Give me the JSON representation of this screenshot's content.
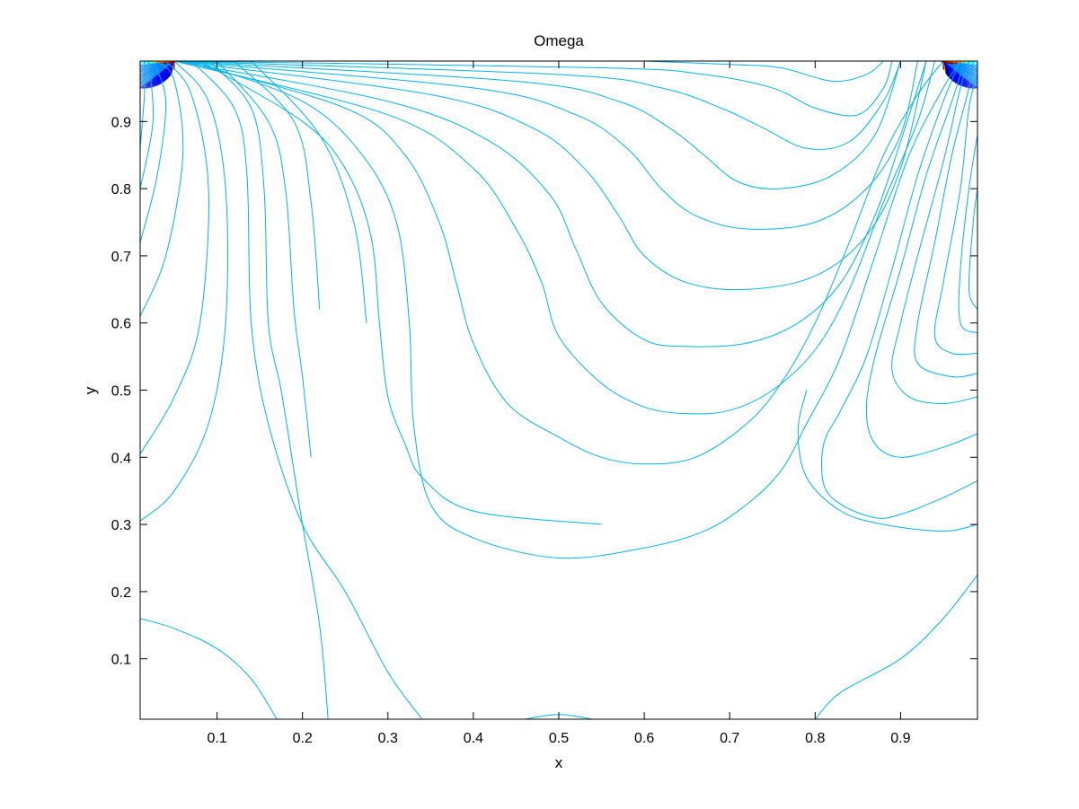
{
  "chart_data": {
    "type": "contour",
    "title": "Omega",
    "xlabel": "x",
    "ylabel": "y",
    "xlim": [
      0.01,
      0.99
    ],
    "ylim": [
      0.01,
      0.99
    ],
    "xticks": [
      0.1,
      0.2,
      0.3,
      0.4,
      0.5,
      0.6,
      0.7,
      0.8,
      0.9
    ],
    "yticks": [
      0.1,
      0.2,
      0.3,
      0.4,
      0.5,
      0.6,
      0.7,
      0.8,
      0.9
    ],
    "grid": false,
    "legend": "none",
    "colormap": "jet",
    "background_color": "#ffffff",
    "line_color": "#00b4e6",
    "colormap_colors": [
      "#00008f",
      "#0000ff",
      "#0080ff",
      "#00ffff",
      "#80ff80",
      "#ffff00",
      "#ff8000",
      "#ff0000",
      "#800000"
    ],
    "levels": [
      {
        "color": "#00b4e6",
        "points": [
          [
            0.01,
            0.16
          ],
          [
            0.05,
            0.145
          ],
          [
            0.1,
            0.115
          ],
          [
            0.14,
            0.07
          ],
          [
            0.17,
            0.01
          ]
        ]
      },
      {
        "color": "#00b4e6",
        "points": [
          [
            0.46,
            0.01
          ],
          [
            0.5,
            0.017
          ],
          [
            0.54,
            0.01
          ]
        ]
      },
      {
        "color": "#00b4e6",
        "points": [
          [
            0.8,
            0.01
          ],
          [
            0.83,
            0.05
          ],
          [
            0.9,
            0.1
          ],
          [
            0.95,
            0.16
          ],
          [
            0.99,
            0.225
          ]
        ]
      },
      {
        "color": "#00b4e6",
        "points": [
          [
            0.01,
            0.305
          ],
          [
            0.05,
            0.35
          ],
          [
            0.09,
            0.45
          ],
          [
            0.11,
            0.6
          ],
          [
            0.11,
            0.8
          ],
          [
            0.09,
            0.93
          ],
          [
            0.05,
            0.99
          ]
        ]
      },
      {
        "color": "#00b4e6",
        "points": [
          [
            0.01,
            0.405
          ],
          [
            0.05,
            0.49
          ],
          [
            0.08,
            0.6
          ],
          [
            0.09,
            0.8
          ],
          [
            0.07,
            0.94
          ],
          [
            0.04,
            0.99
          ]
        ]
      },
      {
        "color": "#00b4e6",
        "points": [
          [
            0.01,
            0.61
          ],
          [
            0.04,
            0.7
          ],
          [
            0.06,
            0.85
          ],
          [
            0.05,
            0.96
          ],
          [
            0.03,
            0.99
          ]
        ]
      },
      {
        "color": "#00b4e6",
        "points": [
          [
            0.01,
            0.72
          ],
          [
            0.03,
            0.82
          ],
          [
            0.04,
            0.93
          ],
          [
            0.025,
            0.99
          ]
        ]
      },
      {
        "color": "#00b4e6",
        "points": [
          [
            0.01,
            0.8
          ],
          [
            0.025,
            0.9
          ],
          [
            0.02,
            0.99
          ]
        ]
      },
      {
        "color": "#00b4e6",
        "points": [
          [
            0.01,
            0.86
          ],
          [
            0.015,
            0.94
          ],
          [
            0.015,
            0.99
          ]
        ]
      },
      {
        "color": "#00b4e6",
        "points": [
          [
            0.07,
            0.99
          ],
          [
            0.12,
            0.92
          ],
          [
            0.135,
            0.82
          ],
          [
            0.14,
            0.6
          ],
          [
            0.16,
            0.45
          ],
          [
            0.2,
            0.3
          ],
          [
            0.25,
            0.2
          ],
          [
            0.3,
            0.08
          ],
          [
            0.34,
            0.01
          ]
        ]
      },
      {
        "color": "#00b4e6",
        "points": [
          [
            0.09,
            0.99
          ],
          [
            0.14,
            0.92
          ],
          [
            0.155,
            0.8
          ],
          [
            0.16,
            0.6
          ],
          [
            0.175,
            0.5
          ],
          [
            0.19,
            0.38
          ],
          [
            0.2,
            0.3
          ],
          [
            0.22,
            0.15
          ],
          [
            0.23,
            0.01
          ]
        ]
      },
      {
        "color": "#00b4e6",
        "points": [
          [
            0.1,
            0.99
          ],
          [
            0.16,
            0.9
          ],
          [
            0.18,
            0.8
          ],
          [
            0.19,
            0.62
          ],
          [
            0.2,
            0.52
          ],
          [
            0.21,
            0.4
          ]
        ]
      },
      {
        "color": "#00b4e6",
        "points": [
          [
            0.12,
            0.99
          ],
          [
            0.19,
            0.9
          ],
          [
            0.21,
            0.78
          ],
          [
            0.22,
            0.62
          ]
        ]
      },
      {
        "color": "#00b4e6",
        "points": [
          [
            0.14,
            0.99
          ],
          [
            0.22,
            0.88
          ],
          [
            0.26,
            0.75
          ],
          [
            0.275,
            0.6
          ]
        ]
      },
      {
        "color": "#00b4e6",
        "points": [
          [
            0.08,
            0.99
          ],
          [
            0.2,
            0.9
          ],
          [
            0.25,
            0.83
          ],
          [
            0.28,
            0.73
          ],
          [
            0.29,
            0.6
          ],
          [
            0.3,
            0.49
          ],
          [
            0.32,
            0.42
          ],
          [
            0.34,
            0.37
          ],
          [
            0.4,
            0.32
          ],
          [
            0.55,
            0.3
          ]
        ]
      },
      {
        "color": "#00b4e6",
        "points": [
          [
            0.07,
            0.99
          ],
          [
            0.2,
            0.93
          ],
          [
            0.27,
            0.85
          ],
          [
            0.31,
            0.75
          ],
          [
            0.325,
            0.6
          ],
          [
            0.33,
            0.45
          ],
          [
            0.35,
            0.33
          ],
          [
            0.4,
            0.28
          ],
          [
            0.5,
            0.25
          ],
          [
            0.6,
            0.265
          ],
          [
            0.67,
            0.29
          ],
          [
            0.72,
            0.33
          ],
          [
            0.76,
            0.38
          ],
          [
            0.79,
            0.45
          ],
          [
            0.83,
            0.55
          ],
          [
            0.87,
            0.7
          ],
          [
            0.91,
            0.85
          ],
          [
            0.95,
            0.95
          ],
          [
            0.97,
            0.99
          ]
        ]
      },
      {
        "color": "#00b4e6",
        "points": [
          [
            0.06,
            0.99
          ],
          [
            0.25,
            0.92
          ],
          [
            0.32,
            0.85
          ],
          [
            0.36,
            0.75
          ],
          [
            0.38,
            0.66
          ],
          [
            0.4,
            0.57
          ],
          [
            0.44,
            0.48
          ],
          [
            0.5,
            0.43
          ],
          [
            0.55,
            0.4
          ],
          [
            0.6,
            0.39
          ],
          [
            0.66,
            0.4
          ],
          [
            0.72,
            0.45
          ],
          [
            0.76,
            0.51
          ],
          [
            0.8,
            0.6
          ],
          [
            0.84,
            0.72
          ],
          [
            0.88,
            0.85
          ],
          [
            0.92,
            0.94
          ],
          [
            0.95,
            0.99
          ]
        ]
      },
      {
        "color": "#00b4e6",
        "points": [
          [
            0.05,
            0.99
          ],
          [
            0.3,
            0.91
          ],
          [
            0.4,
            0.83
          ],
          [
            0.45,
            0.74
          ],
          [
            0.48,
            0.66
          ],
          [
            0.5,
            0.58
          ],
          [
            0.55,
            0.51
          ],
          [
            0.6,
            0.475
          ],
          [
            0.65,
            0.465
          ],
          [
            0.7,
            0.47
          ],
          [
            0.75,
            0.5
          ],
          [
            0.8,
            0.56
          ],
          [
            0.84,
            0.65
          ],
          [
            0.88,
            0.78
          ],
          [
            0.92,
            0.9
          ],
          [
            0.94,
            0.99
          ]
        ]
      },
      {
        "color": "#00b4e6",
        "points": [
          [
            0.05,
            0.99
          ],
          [
            0.3,
            0.93
          ],
          [
            0.42,
            0.87
          ],
          [
            0.49,
            0.79
          ],
          [
            0.52,
            0.71
          ],
          [
            0.55,
            0.63
          ],
          [
            0.6,
            0.575
          ],
          [
            0.65,
            0.565
          ],
          [
            0.72,
            0.57
          ],
          [
            0.78,
            0.6
          ],
          [
            0.83,
            0.66
          ],
          [
            0.87,
            0.76
          ],
          [
            0.9,
            0.87
          ],
          [
            0.93,
            0.99
          ]
        ]
      },
      {
        "color": "#00b4e6",
        "points": [
          [
            0.05,
            0.99
          ],
          [
            0.35,
            0.94
          ],
          [
            0.47,
            0.89
          ],
          [
            0.53,
            0.83
          ],
          [
            0.57,
            0.76
          ],
          [
            0.6,
            0.7
          ],
          [
            0.65,
            0.66
          ],
          [
            0.72,
            0.65
          ],
          [
            0.8,
            0.67
          ],
          [
            0.86,
            0.73
          ],
          [
            0.9,
            0.83
          ],
          [
            0.93,
            0.99
          ]
        ]
      },
      {
        "color": "#00b4e6",
        "points": [
          [
            0.05,
            0.99
          ],
          [
            0.4,
            0.95
          ],
          [
            0.52,
            0.91
          ],
          [
            0.58,
            0.86
          ],
          [
            0.62,
            0.8
          ],
          [
            0.66,
            0.76
          ],
          [
            0.72,
            0.74
          ],
          [
            0.8,
            0.75
          ],
          [
            0.86,
            0.8
          ],
          [
            0.9,
            0.88
          ],
          [
            0.92,
            0.99
          ]
        ]
      },
      {
        "color": "#00b4e6",
        "points": [
          [
            0.05,
            0.99
          ],
          [
            0.45,
            0.96
          ],
          [
            0.57,
            0.93
          ],
          [
            0.63,
            0.89
          ],
          [
            0.67,
            0.85
          ],
          [
            0.71,
            0.81
          ],
          [
            0.76,
            0.8
          ],
          [
            0.82,
            0.82
          ],
          [
            0.87,
            0.88
          ],
          [
            0.9,
            0.99
          ]
        ]
      },
      {
        "color": "#00b4e6",
        "points": [
          [
            0.05,
            0.99
          ],
          [
            0.5,
            0.97
          ],
          [
            0.62,
            0.95
          ],
          [
            0.69,
            0.92
          ],
          [
            0.74,
            0.89
          ],
          [
            0.79,
            0.86
          ],
          [
            0.84,
            0.87
          ],
          [
            0.88,
            0.93
          ],
          [
            0.9,
            0.99
          ]
        ]
      },
      {
        "color": "#00b4e6",
        "points": [
          [
            0.05,
            0.99
          ],
          [
            0.55,
            0.98
          ],
          [
            0.67,
            0.97
          ],
          [
            0.75,
            0.95
          ],
          [
            0.8,
            0.92
          ],
          [
            0.85,
            0.91
          ],
          [
            0.88,
            0.95
          ],
          [
            0.89,
            0.99
          ]
        ]
      },
      {
        "color": "#00b4e6",
        "points": [
          [
            0.6,
            0.99
          ],
          [
            0.7,
            0.985
          ],
          [
            0.76,
            0.98
          ],
          [
            0.82,
            0.96
          ],
          [
            0.86,
            0.97
          ],
          [
            0.88,
            0.99
          ]
        ]
      },
      {
        "color": "#00b4e6",
        "points": [
          [
            0.99,
            0.365
          ],
          [
            0.95,
            0.34
          ],
          [
            0.9,
            0.315
          ],
          [
            0.87,
            0.31
          ],
          [
            0.83,
            0.33
          ],
          [
            0.81,
            0.36
          ],
          [
            0.81,
            0.42
          ],
          [
            0.83,
            0.47
          ],
          [
            0.86,
            0.55
          ],
          [
            0.89,
            0.68
          ],
          [
            0.92,
            0.82
          ],
          [
            0.95,
            0.93
          ],
          [
            0.97,
            0.99
          ]
        ]
      },
      {
        "color": "#00b4e6",
        "points": [
          [
            0.99,
            0.435
          ],
          [
            0.95,
            0.415
          ],
          [
            0.9,
            0.4
          ],
          [
            0.87,
            0.42
          ],
          [
            0.86,
            0.47
          ],
          [
            0.87,
            0.55
          ],
          [
            0.9,
            0.68
          ],
          [
            0.93,
            0.82
          ],
          [
            0.96,
            0.93
          ],
          [
            0.975,
            0.99
          ]
        ]
      },
      {
        "color": "#00b4e6",
        "points": [
          [
            0.99,
            0.49
          ],
          [
            0.95,
            0.48
          ],
          [
            0.91,
            0.49
          ],
          [
            0.89,
            0.53
          ],
          [
            0.9,
            0.6
          ],
          [
            0.92,
            0.7
          ],
          [
            0.95,
            0.84
          ],
          [
            0.97,
            0.95
          ],
          [
            0.98,
            0.99
          ]
        ]
      },
      {
        "color": "#00b4e6",
        "points": [
          [
            0.99,
            0.525
          ],
          [
            0.96,
            0.52
          ],
          [
            0.92,
            0.54
          ],
          [
            0.92,
            0.6
          ],
          [
            0.94,
            0.72
          ],
          [
            0.96,
            0.85
          ],
          [
            0.98,
            0.95
          ],
          [
            0.985,
            0.99
          ]
        ]
      },
      {
        "color": "#00b4e6",
        "points": [
          [
            0.99,
            0.555
          ],
          [
            0.96,
            0.555
          ],
          [
            0.94,
            0.58
          ],
          [
            0.95,
            0.66
          ],
          [
            0.97,
            0.8
          ],
          [
            0.98,
            0.92
          ],
          [
            0.99,
            0.97
          ]
        ]
      },
      {
        "color": "#00b4e6",
        "points": [
          [
            0.99,
            0.585
          ],
          [
            0.97,
            0.6
          ],
          [
            0.97,
            0.68
          ],
          [
            0.98,
            0.8
          ],
          [
            0.99,
            0.88
          ]
        ]
      },
      {
        "color": "#00b4e6",
        "points": [
          [
            0.99,
            0.62
          ],
          [
            0.98,
            0.65
          ],
          [
            0.985,
            0.75
          ],
          [
            0.99,
            0.8
          ]
        ]
      },
      {
        "color": "#00b4e6",
        "points": [
          [
            0.99,
            0.3
          ],
          [
            0.95,
            0.29
          ],
          [
            0.88,
            0.3
          ],
          [
            0.83,
            0.32
          ],
          [
            0.79,
            0.37
          ],
          [
            0.78,
            0.44
          ],
          [
            0.79,
            0.5
          ]
        ]
      }
    ],
    "corner_hotspots": [
      {
        "x": 0.05,
        "y": 0.99,
        "direction": "left"
      },
      {
        "x": 0.95,
        "y": 0.99,
        "direction": "right"
      }
    ]
  }
}
